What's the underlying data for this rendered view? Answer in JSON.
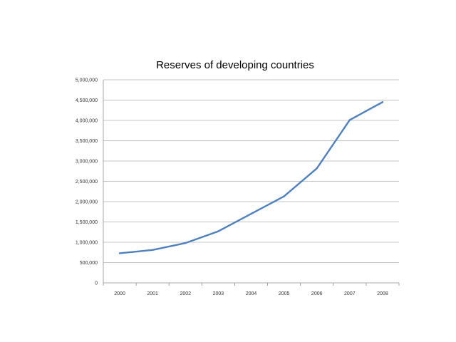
{
  "chart_data": {
    "type": "line",
    "title": "Reserves of developing countries",
    "xlabel": "",
    "ylabel": "",
    "categories": [
      "2000",
      "2001",
      "2002",
      "2003",
      "2004",
      "2005",
      "2006",
      "2007",
      "2008"
    ],
    "series": [
      {
        "values": [
          730000,
          810000,
          980000,
          1270000,
          1700000,
          2130000,
          2820000,
          4010000,
          4450000
        ],
        "color": "#4f81bd"
      }
    ],
    "y_ticks": [
      0,
      500000,
      1000000,
      1500000,
      2000000,
      2500000,
      3000000,
      3500000,
      4000000,
      4500000,
      5000000
    ],
    "y_tick_labels": [
      "0",
      "500,000",
      "1,000,000",
      "1,500,000",
      "2,000,000",
      "2,500,000",
      "3,000,000",
      "3,500,000",
      "4,000,000",
      "4,500,000",
      "5,000,000"
    ],
    "ylim": [
      0,
      5000000
    ],
    "grid": true,
    "legend": "none"
  }
}
